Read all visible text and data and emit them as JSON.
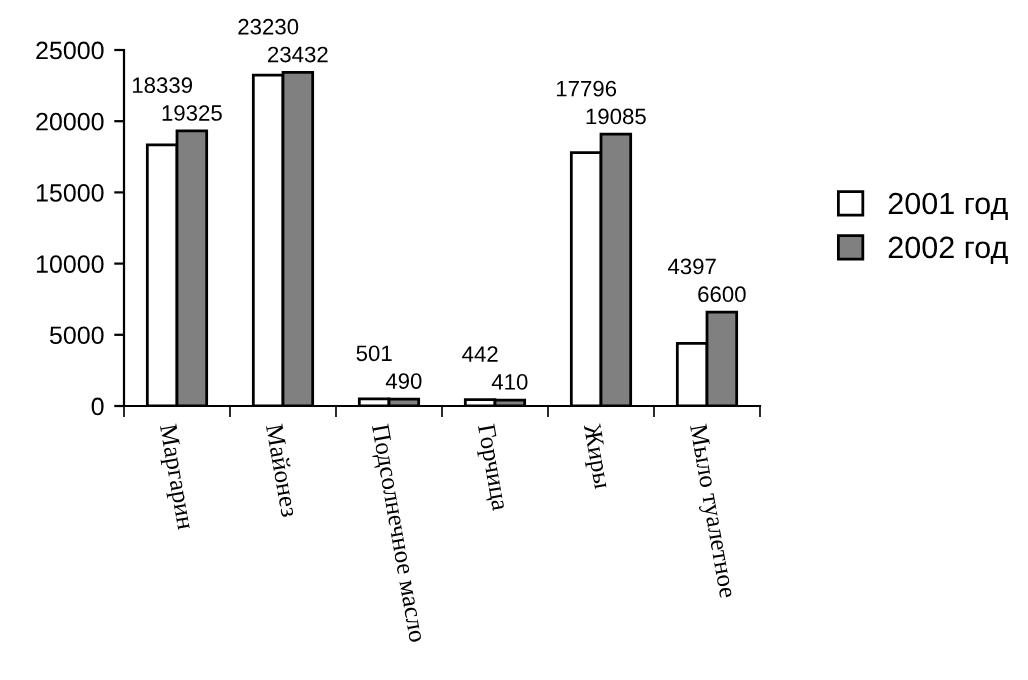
{
  "chart_data": {
    "type": "bar",
    "categories": [
      "Маргарин",
      "Майонез",
      "Подсолнечное масло",
      "Горчица",
      "Жиры",
      "Мыло туалетное"
    ],
    "series": [
      {
        "name": "2001 год",
        "color": "#ffffff",
        "values": [
          18339,
          23230,
          501,
          442,
          17796,
          4397
        ]
      },
      {
        "name": "2002 год",
        "color": "#808080",
        "values": [
          19325,
          23432,
          490,
          410,
          19085,
          6600
        ]
      }
    ],
    "ylim": [
      0,
      25000
    ],
    "yticks": [
      0,
      5000,
      10000,
      15000,
      20000,
      25000
    ],
    "grid": false,
    "legend": "right",
    "data_labels": true
  }
}
